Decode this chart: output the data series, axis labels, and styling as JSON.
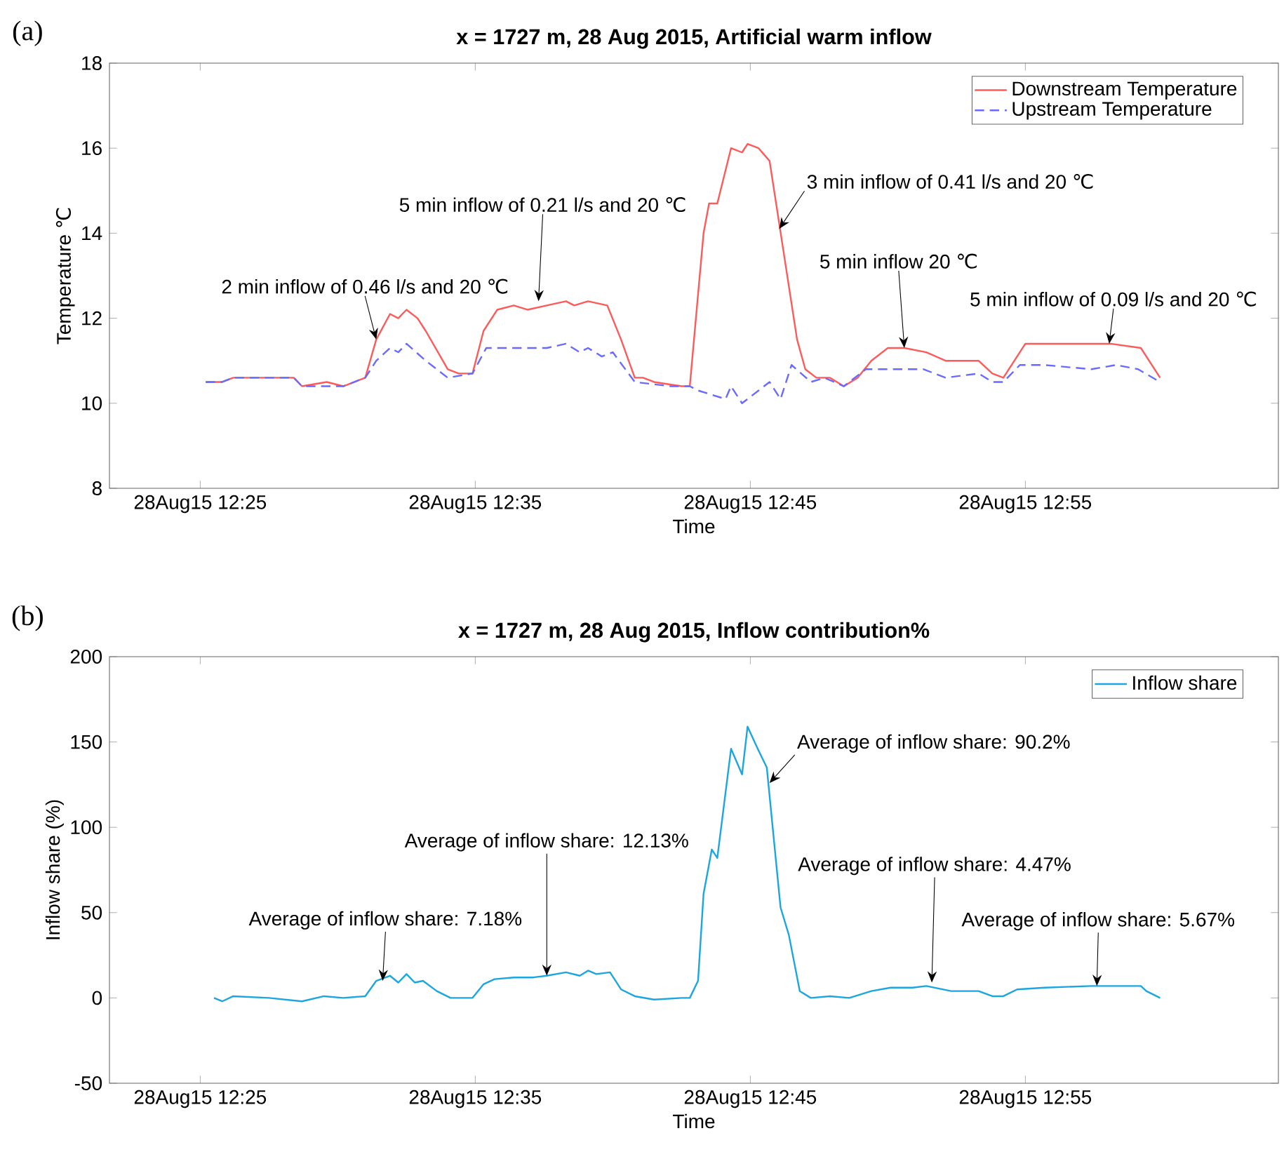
{
  "chart_data": [
    {
      "type": "line",
      "title": "x = 1727 m, 28 Aug 2015, Artificial warm inflow",
      "xlabel": "Time",
      "ylabel": "Temperature ℃",
      "legend": "top right",
      "xlim": [
        "2015-08-28T12:21:42",
        "2015-08-28T13:04:12"
      ],
      "ylim": [
        8,
        18
      ],
      "yticks": [
        8,
        10,
        12,
        14,
        16,
        18
      ],
      "xticks": [
        {
          "value": "2015-08-28T12:25",
          "label": "28Aug15 12:25"
        },
        {
          "value": "2015-08-28T12:35",
          "label": "28Aug15 12:35"
        },
        {
          "value": "2015-08-28T12:45",
          "label": "28Aug15 12:45"
        },
        {
          "value": "2015-08-28T12:55",
          "label": "28Aug15 12:55"
        }
      ],
      "series": [
        {
          "name": "Downstream Temperature",
          "color": "#ff5a5a",
          "line_style": "solid",
          "x": [
            "2015-08-28T12:25:12",
            "2015-08-28T12:25:48",
            "2015-08-28T12:26:12",
            "2015-08-28T12:27:30",
            "2015-08-28T12:28:24",
            "2015-08-28T12:28:42",
            "2015-08-28T12:29:36",
            "2015-08-28T12:30:12",
            "2015-08-28T12:31:00",
            "2015-08-28T12:31:24",
            "2015-08-28T12:31:54",
            "2015-08-28T12:32:12",
            "2015-08-28T12:32:30",
            "2015-08-28T12:32:54",
            "2015-08-28T12:33:12",
            "2015-08-28T12:34:00",
            "2015-08-28T12:34:24",
            "2015-08-28T12:34:54",
            "2015-08-28T12:35:18",
            "2015-08-28T12:35:48",
            "2015-08-28T12:36:24",
            "2015-08-28T12:36:54",
            "2015-08-28T12:37:36",
            "2015-08-28T12:38:18",
            "2015-08-28T12:38:36",
            "2015-08-28T12:39:06",
            "2015-08-28T12:39:48",
            "2015-08-28T12:40:18",
            "2015-08-28T12:40:48",
            "2015-08-28T12:41:06",
            "2015-08-28T12:41:30",
            "2015-08-28T12:42:30",
            "2015-08-28T12:42:48",
            "2015-08-28T12:43:18",
            "2015-08-28T12:43:30",
            "2015-08-28T12:43:48",
            "2015-08-28T12:44:18",
            "2015-08-28T12:44:42",
            "2015-08-28T12:44:54",
            "2015-08-28T12:45:18",
            "2015-08-28T12:45:42",
            "2015-08-28T12:46:12",
            "2015-08-28T12:46:42",
            "2015-08-28T12:47:00",
            "2015-08-28T12:47:24",
            "2015-08-28T12:47:54",
            "2015-08-28T12:48:24",
            "2015-08-28T12:48:54",
            "2015-08-28T12:49:24",
            "2015-08-28T12:50:00",
            "2015-08-28T12:50:36",
            "2015-08-28T12:51:24",
            "2015-08-28T12:52:06",
            "2015-08-28T12:53:18",
            "2015-08-28T12:53:48",
            "2015-08-28T12:54:12",
            "2015-08-28T12:55:00",
            "2015-08-28T12:55:42",
            "2015-08-28T12:56:30",
            "2015-08-28T12:58:06",
            "2015-08-28T12:59:12",
            "2015-08-28T12:59:54"
          ],
          "values": [
            10.5,
            10.5,
            10.6,
            10.6,
            10.6,
            10.4,
            10.5,
            10.4,
            10.6,
            11.5,
            12.1,
            12.0,
            12.2,
            12.0,
            11.7,
            10.8,
            10.7,
            10.7,
            11.7,
            12.2,
            12.3,
            12.2,
            12.3,
            12.4,
            12.3,
            12.4,
            12.3,
            11.5,
            10.6,
            10.6,
            10.5,
            10.4,
            10.4,
            14.0,
            14.7,
            14.7,
            16.0,
            15.9,
            16.1,
            16.0,
            15.7,
            13.6,
            11.5,
            10.8,
            10.6,
            10.6,
            10.4,
            10.6,
            11.0,
            11.3,
            11.3,
            11.2,
            11.0,
            11.0,
            10.7,
            10.6,
            11.4,
            11.4,
            11.4,
            11.4,
            11.3,
            10.6
          ]
        },
        {
          "name": "Upstream Temperature",
          "color": "#6a6aff",
          "line_style": "dashed",
          "x": [
            "2015-08-28T12:25:12",
            "2015-08-28T12:25:48",
            "2015-08-28T12:26:12",
            "2015-08-28T12:27:30",
            "2015-08-28T12:28:24",
            "2015-08-28T12:28:42",
            "2015-08-28T12:30:12",
            "2015-08-28T12:31:00",
            "2015-08-28T12:31:24",
            "2015-08-28T12:31:54",
            "2015-08-28T12:32:12",
            "2015-08-28T12:32:30",
            "2015-08-28T12:33:12",
            "2015-08-28T12:34:00",
            "2015-08-28T12:34:54",
            "2015-08-28T12:35:24",
            "2015-08-28T12:36:18",
            "2015-08-28T12:37:36",
            "2015-08-28T12:38:18",
            "2015-08-28T12:38:48",
            "2015-08-28T12:39:06",
            "2015-08-28T12:39:36",
            "2015-08-28T12:40:00",
            "2015-08-28T12:40:48",
            "2015-08-28T12:42:06",
            "2015-08-28T12:42:48",
            "2015-08-28T12:43:06",
            "2015-08-28T12:44:06",
            "2015-08-28T12:44:18",
            "2015-08-28T12:44:42",
            "2015-08-28T12:45:42",
            "2015-08-28T12:46:06",
            "2015-08-28T12:46:30",
            "2015-08-28T12:47:12",
            "2015-08-28T12:47:42",
            "2015-08-28T12:48:24",
            "2015-08-28T12:49:12",
            "2015-08-28T12:50:00",
            "2015-08-28T12:51:18",
            "2015-08-28T12:52:06",
            "2015-08-28T12:53:18",
            "2015-08-28T12:53:48",
            "2015-08-28T12:54:12",
            "2015-08-28T12:54:48",
            "2015-08-28T12:55:42",
            "2015-08-28T12:57:24",
            "2015-08-28T12:58:18",
            "2015-08-28T12:59:06",
            "2015-08-28T12:59:54"
          ],
          "values": [
            10.5,
            10.5,
            10.6,
            10.6,
            10.6,
            10.4,
            10.4,
            10.6,
            11.0,
            11.3,
            11.2,
            11.4,
            11.0,
            10.6,
            10.7,
            11.3,
            11.3,
            11.3,
            11.4,
            11.2,
            11.3,
            11.1,
            11.2,
            10.5,
            10.4,
            10.4,
            10.3,
            10.1,
            10.4,
            10.0,
            10.5,
            10.1,
            10.9,
            10.5,
            10.6,
            10.4,
            10.8,
            10.8,
            10.8,
            10.6,
            10.7,
            10.5,
            10.5,
            10.9,
            10.9,
            10.8,
            10.9,
            10.8,
            10.5
          ]
        }
      ],
      "annotations": [
        "(a)",
        {
          "text": "2 min inflow of 0.46 l/s and 20 ℃",
          "x": "2015-08-28T12:31:24",
          "y": 11.5
        },
        {
          "text": "5 min inflow of 0.21 l/s and 20 ℃",
          "x": "2015-08-28T12:37:18",
          "y": 12.4
        },
        {
          "text": "3 min inflow of 0.41 l/s and 20 ℃",
          "x": "2015-08-28T12:46:03",
          "y": 14.1
        },
        {
          "text": "5 min inflow 20 ℃",
          "x": "2015-08-28T12:50:36",
          "y": 11.3
        },
        {
          "text": "5 min inflow of 0.09 l/s and 20 ℃",
          "x": "2015-08-28T12:58:03",
          "y": 11.4
        }
      ]
    },
    {
      "type": "line",
      "title": "x = 1727 m, 28 Aug 2015, Inflow contribution%",
      "xlabel": "Time",
      "ylabel": "Inflow share (%)",
      "legend": "top right",
      "xlim": [
        "2015-08-28T12:21:42",
        "2015-08-28T13:04:12"
      ],
      "ylim": [
        -50,
        200
      ],
      "yticks": [
        -50,
        0,
        50,
        100,
        150,
        200
      ],
      "xticks": [
        {
          "value": "2015-08-28T12:25",
          "label": "28Aug15 12:25"
        },
        {
          "value": "2015-08-28T12:35",
          "label": "28Aug15 12:35"
        },
        {
          "value": "2015-08-28T12:45",
          "label": "28Aug15 12:45"
        },
        {
          "value": "2015-08-28T12:55",
          "label": "28Aug15 12:55"
        }
      ],
      "series": [
        {
          "name": "Inflow share",
          "color": "#1ca6df",
          "line_style": "solid",
          "x": [
            "2015-08-28T12:25:30",
            "2015-08-28T12:25:48",
            "2015-08-28T12:26:12",
            "2015-08-28T12:27:30",
            "2015-08-28T12:28:42",
            "2015-08-28T12:29:30",
            "2015-08-28T12:30:12",
            "2015-08-28T12:31:00",
            "2015-08-28T12:31:24",
            "2015-08-28T12:31:54",
            "2015-08-28T12:32:12",
            "2015-08-28T12:32:30",
            "2015-08-28T12:32:48",
            "2015-08-28T12:33:06",
            "2015-08-28T12:33:36",
            "2015-08-28T12:34:06",
            "2015-08-28T12:34:54",
            "2015-08-28T12:35:18",
            "2015-08-28T12:35:42",
            "2015-08-28T12:36:24",
            "2015-08-28T12:37:06",
            "2015-08-28T12:37:36",
            "2015-08-28T12:38:18",
            "2015-08-28T12:38:48",
            "2015-08-28T12:39:06",
            "2015-08-28T12:39:24",
            "2015-08-28T12:39:54",
            "2015-08-28T12:40:18",
            "2015-08-28T12:40:48",
            "2015-08-28T12:41:30",
            "2015-08-28T12:42:30",
            "2015-08-28T12:42:48",
            "2015-08-28T12:43:06",
            "2015-08-28T12:43:18",
            "2015-08-28T12:43:36",
            "2015-08-28T12:43:48",
            "2015-08-28T12:44:18",
            "2015-08-28T12:44:42",
            "2015-08-28T12:44:54",
            "2015-08-28T12:45:18",
            "2015-08-28T12:45:36",
            "2015-08-28T12:46:06",
            "2015-08-28T12:46:24",
            "2015-08-28T12:46:48",
            "2015-08-28T12:47:12",
            "2015-08-28T12:47:54",
            "2015-08-28T12:48:36",
            "2015-08-28T12:49:24",
            "2015-08-28T12:50:06",
            "2015-08-28T12:50:54",
            "2015-08-28T12:51:24",
            "2015-08-28T12:52:18",
            "2015-08-28T12:53:18",
            "2015-08-28T12:53:48",
            "2015-08-28T12:54:12",
            "2015-08-28T12:54:42",
            "2015-08-28T12:55:42",
            "2015-08-28T12:57:24",
            "2015-08-28T12:59:12",
            "2015-08-28T12:59:24",
            "2015-08-28T12:59:54"
          ],
          "values": [
            0,
            -2,
            1,
            0,
            -2,
            1,
            0,
            1,
            10,
            13,
            9,
            14,
            9,
            10,
            4,
            0,
            0,
            8,
            11,
            12,
            12,
            13,
            15,
            13,
            16,
            14,
            15,
            5,
            1,
            -1,
            0,
            0,
            10,
            61,
            87,
            82,
            146,
            131,
            159,
            145,
            135,
            53,
            37,
            4,
            0,
            1,
            0,
            4,
            6,
            6,
            7,
            4,
            4,
            1,
            1,
            5,
            6,
            7,
            7,
            4,
            0
          ]
        }
      ],
      "annotations": [
        "(b)",
        {
          "text": "Average of inflow share: 7.18%",
          "x": "2015-08-28T12:31:38",
          "y": 10
        },
        {
          "text": "Average of inflow share: 12.13%",
          "x": "2015-08-28T12:37:36",
          "y": 13
        },
        {
          "text": "Average of inflow share: 90.2%",
          "x": "2015-08-28T12:45:42",
          "y": 126
        },
        {
          "text": "Average of inflow share: 4.47%",
          "x": "2015-08-28T12:51:36",
          "y": 9
        },
        {
          "text": "Average of inflow share: 5.67%",
          "x": "2015-08-28T12:57:36",
          "y": 7
        }
      ]
    }
  ]
}
